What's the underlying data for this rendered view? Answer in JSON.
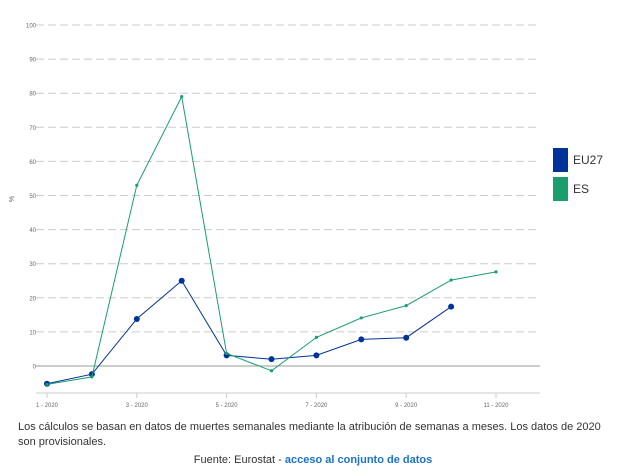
{
  "chart_data": {
    "type": "line",
    "title": "",
    "xlabel": "",
    "ylabel": "%",
    "ylim": [
      -5,
      100
    ],
    "y_ticks": [
      0,
      10,
      20,
      30,
      40,
      50,
      60,
      70,
      80,
      90,
      100
    ],
    "x_tick_labels": [
      "1 - 2020",
      "3 - 2020",
      "5 - 2020",
      "7 - 2020",
      "9 - 2020",
      "11 - 2020"
    ],
    "x_tick_months": [
      1,
      3,
      5,
      7,
      9,
      11
    ],
    "grid": "horizontal dashed",
    "legend_position": "right",
    "series": [
      {
        "name": "EU27",
        "color": "#003399",
        "x": [
          1,
          2,
          3,
          4,
          5,
          6,
          7,
          8,
          9,
          10
        ],
        "values": [
          -5.2,
          -2.4,
          13.8,
          25.0,
          3.1,
          2.0,
          3.1,
          7.8,
          8.3,
          17.4
        ]
      },
      {
        "name": "ES",
        "color": "#1a9e6e",
        "x": [
          1,
          2,
          3,
          4,
          5,
          6,
          7,
          8,
          9,
          10,
          11
        ],
        "values": [
          -5.4,
          -3.2,
          53.0,
          79.0,
          3.7,
          -1.4,
          8.4,
          14.1,
          17.7,
          25.2,
          27.6
        ]
      }
    ]
  },
  "footnote": "Los cálculos se basan en datos de muertes semanales mediante la atribución de semanas a meses. Los datos de 2020 son provisionales.",
  "source": {
    "prefix": "Fuente: Eurostat - ",
    "link_label": "acceso al conjunto de datos"
  }
}
